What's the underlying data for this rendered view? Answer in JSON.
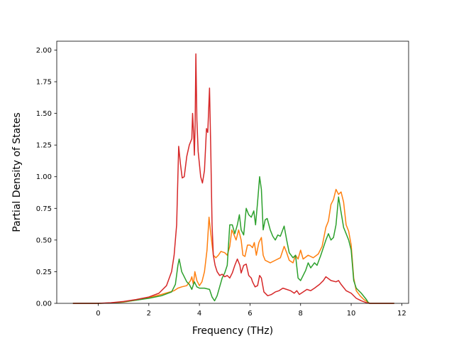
{
  "chart_data": {
    "type": "line",
    "title": "",
    "xlabel": "Frequency (THz)",
    "ylabel": "Partial Density of States",
    "xlim": [
      -1.64,
      12.27
    ],
    "ylim": [
      0,
      2.07
    ],
    "xticks": [
      0,
      2,
      4,
      6,
      8,
      10,
      12
    ],
    "yticks": [
      0.0,
      0.25,
      0.5,
      0.75,
      1.0,
      1.25,
      1.5,
      1.75,
      2.0
    ],
    "xtick_labels": [
      "0",
      "2",
      "4",
      "6",
      "8",
      "10",
      "12"
    ],
    "ytick_labels": [
      "0.00",
      "0.25",
      "0.50",
      "0.75",
      "1.00",
      "1.25",
      "1.50",
      "1.75",
      "2.00"
    ],
    "grid": false,
    "legend": "none",
    "series": [
      {
        "color": "#ff7f0e",
        "points": [
          [
            -1.0,
            0
          ],
          [
            0,
            0
          ],
          [
            0.5,
            0.003
          ],
          [
            1.0,
            0.01
          ],
          [
            1.5,
            0.025
          ],
          [
            2.0,
            0.045
          ],
          [
            2.5,
            0.07
          ],
          [
            3.0,
            0.1
          ],
          [
            3.15,
            0.12
          ],
          [
            3.3,
            0.13
          ],
          [
            3.5,
            0.14
          ],
          [
            3.65,
            0.18
          ],
          [
            3.7,
            0.21
          ],
          [
            3.76,
            0.15
          ],
          [
            3.82,
            0.25
          ],
          [
            3.9,
            0.18
          ],
          [
            4.0,
            0.14
          ],
          [
            4.1,
            0.17
          ],
          [
            4.2,
            0.25
          ],
          [
            4.3,
            0.42
          ],
          [
            4.38,
            0.68
          ],
          [
            4.45,
            0.55
          ],
          [
            4.55,
            0.38
          ],
          [
            4.65,
            0.36
          ],
          [
            4.75,
            0.38
          ],
          [
            4.85,
            0.41
          ],
          [
            5.0,
            0.4
          ],
          [
            5.1,
            0.38
          ],
          [
            5.2,
            0.45
          ],
          [
            5.28,
            0.58
          ],
          [
            5.35,
            0.55
          ],
          [
            5.45,
            0.5
          ],
          [
            5.55,
            0.58
          ],
          [
            5.65,
            0.5
          ],
          [
            5.72,
            0.38
          ],
          [
            5.8,
            0.37
          ],
          [
            5.9,
            0.46
          ],
          [
            6.0,
            0.46
          ],
          [
            6.1,
            0.44
          ],
          [
            6.17,
            0.48
          ],
          [
            6.25,
            0.38
          ],
          [
            6.35,
            0.48
          ],
          [
            6.45,
            0.52
          ],
          [
            6.52,
            0.38
          ],
          [
            6.6,
            0.34
          ],
          [
            6.8,
            0.32
          ],
          [
            7.0,
            0.34
          ],
          [
            7.2,
            0.36
          ],
          [
            7.35,
            0.45
          ],
          [
            7.45,
            0.4
          ],
          [
            7.55,
            0.34
          ],
          [
            7.7,
            0.32
          ],
          [
            7.8,
            0.38
          ],
          [
            7.9,
            0.35
          ],
          [
            8.0,
            0.42
          ],
          [
            8.1,
            0.35
          ],
          [
            8.3,
            0.38
          ],
          [
            8.5,
            0.36
          ],
          [
            8.7,
            0.39
          ],
          [
            8.85,
            0.45
          ],
          [
            9.0,
            0.6
          ],
          [
            9.1,
            0.65
          ],
          [
            9.2,
            0.78
          ],
          [
            9.3,
            0.82
          ],
          [
            9.4,
            0.9
          ],
          [
            9.5,
            0.86
          ],
          [
            9.6,
            0.88
          ],
          [
            9.7,
            0.8
          ],
          [
            9.8,
            0.62
          ],
          [
            9.9,
            0.57
          ],
          [
            10.0,
            0.46
          ],
          [
            10.1,
            0.2
          ],
          [
            10.2,
            0.1
          ],
          [
            10.35,
            0.06
          ],
          [
            10.5,
            0.03
          ],
          [
            10.65,
            0.01
          ],
          [
            10.75,
            0
          ],
          [
            11.7,
            0
          ]
        ]
      },
      {
        "color": "#2ca02c",
        "points": [
          [
            -1.0,
            0
          ],
          [
            0,
            0
          ],
          [
            0.5,
            0.003
          ],
          [
            1.0,
            0.012
          ],
          [
            1.5,
            0.025
          ],
          [
            2.0,
            0.04
          ],
          [
            2.5,
            0.06
          ],
          [
            2.9,
            0.09
          ],
          [
            3.05,
            0.15
          ],
          [
            3.15,
            0.3
          ],
          [
            3.2,
            0.35
          ],
          [
            3.3,
            0.25
          ],
          [
            3.4,
            0.21
          ],
          [
            3.5,
            0.17
          ],
          [
            3.6,
            0.15
          ],
          [
            3.7,
            0.11
          ],
          [
            3.8,
            0.17
          ],
          [
            3.9,
            0.13
          ],
          [
            4.0,
            0.12
          ],
          [
            4.2,
            0.12
          ],
          [
            4.4,
            0.11
          ],
          [
            4.5,
            0.05
          ],
          [
            4.6,
            0.02
          ],
          [
            4.7,
            0.06
          ],
          [
            4.8,
            0.13
          ],
          [
            4.9,
            0.2
          ],
          [
            5.0,
            0.24
          ],
          [
            5.1,
            0.3
          ],
          [
            5.2,
            0.62
          ],
          [
            5.3,
            0.62
          ],
          [
            5.4,
            0.55
          ],
          [
            5.5,
            0.62
          ],
          [
            5.58,
            0.7
          ],
          [
            5.65,
            0.58
          ],
          [
            5.75,
            0.54
          ],
          [
            5.85,
            0.75
          ],
          [
            5.95,
            0.7
          ],
          [
            6.05,
            0.68
          ],
          [
            6.15,
            0.73
          ],
          [
            6.22,
            0.62
          ],
          [
            6.3,
            0.8
          ],
          [
            6.38,
            1.0
          ],
          [
            6.45,
            0.9
          ],
          [
            6.52,
            0.58
          ],
          [
            6.6,
            0.66
          ],
          [
            6.68,
            0.67
          ],
          [
            6.8,
            0.58
          ],
          [
            6.9,
            0.53
          ],
          [
            7.0,
            0.5
          ],
          [
            7.1,
            0.54
          ],
          [
            7.2,
            0.53
          ],
          [
            7.35,
            0.61
          ],
          [
            7.45,
            0.5
          ],
          [
            7.55,
            0.4
          ],
          [
            7.7,
            0.36
          ],
          [
            7.8,
            0.38
          ],
          [
            7.9,
            0.2
          ],
          [
            8.0,
            0.18
          ],
          [
            8.1,
            0.22
          ],
          [
            8.2,
            0.26
          ],
          [
            8.3,
            0.32
          ],
          [
            8.4,
            0.28
          ],
          [
            8.55,
            0.32
          ],
          [
            8.65,
            0.3
          ],
          [
            8.8,
            0.38
          ],
          [
            9.0,
            0.5
          ],
          [
            9.1,
            0.55
          ],
          [
            9.2,
            0.5
          ],
          [
            9.3,
            0.52
          ],
          [
            9.4,
            0.62
          ],
          [
            9.5,
            0.84
          ],
          [
            9.6,
            0.72
          ],
          [
            9.7,
            0.6
          ],
          [
            9.8,
            0.55
          ],
          [
            9.9,
            0.5
          ],
          [
            10.0,
            0.42
          ],
          [
            10.1,
            0.18
          ],
          [
            10.2,
            0.12
          ],
          [
            10.4,
            0.08
          ],
          [
            10.6,
            0.03
          ],
          [
            10.7,
            0
          ],
          [
            11.7,
            0
          ]
        ]
      },
      {
        "color": "#d62728",
        "points": [
          [
            -1.0,
            0
          ],
          [
            0,
            0
          ],
          [
            0.5,
            0.005
          ],
          [
            1.0,
            0.015
          ],
          [
            1.5,
            0.03
          ],
          [
            2.0,
            0.05
          ],
          [
            2.4,
            0.08
          ],
          [
            2.7,
            0.14
          ],
          [
            2.9,
            0.25
          ],
          [
            3.0,
            0.38
          ],
          [
            3.1,
            0.62
          ],
          [
            3.18,
            1.24
          ],
          [
            3.25,
            1.1
          ],
          [
            3.32,
            0.99
          ],
          [
            3.4,
            1.0
          ],
          [
            3.5,
            1.16
          ],
          [
            3.6,
            1.25
          ],
          [
            3.7,
            1.3
          ],
          [
            3.73,
            1.5
          ],
          [
            3.78,
            1.3
          ],
          [
            3.8,
            1.17
          ],
          [
            3.83,
            1.4
          ],
          [
            3.86,
            1.97
          ],
          [
            3.9,
            1.45
          ],
          [
            3.95,
            1.2
          ],
          [
            4.05,
            1.0
          ],
          [
            4.12,
            0.95
          ],
          [
            4.2,
            1.05
          ],
          [
            4.28,
            1.38
          ],
          [
            4.33,
            1.35
          ],
          [
            4.4,
            1.7
          ],
          [
            4.45,
            1.2
          ],
          [
            4.5,
            0.62
          ],
          [
            4.55,
            0.38
          ],
          [
            4.62,
            0.3
          ],
          [
            4.7,
            0.25
          ],
          [
            4.8,
            0.22
          ],
          [
            4.9,
            0.23
          ],
          [
            5.0,
            0.21
          ],
          [
            5.1,
            0.22
          ],
          [
            5.2,
            0.2
          ],
          [
            5.3,
            0.24
          ],
          [
            5.4,
            0.3
          ],
          [
            5.5,
            0.35
          ],
          [
            5.6,
            0.3
          ],
          [
            5.65,
            0.24
          ],
          [
            5.75,
            0.3
          ],
          [
            5.85,
            0.31
          ],
          [
            5.95,
            0.22
          ],
          [
            6.05,
            0.2
          ],
          [
            6.1,
            0.17
          ],
          [
            6.2,
            0.13
          ],
          [
            6.3,
            0.14
          ],
          [
            6.38,
            0.22
          ],
          [
            6.45,
            0.2
          ],
          [
            6.55,
            0.09
          ],
          [
            6.7,
            0.06
          ],
          [
            6.85,
            0.07
          ],
          [
            7.0,
            0.09
          ],
          [
            7.15,
            0.1
          ],
          [
            7.3,
            0.12
          ],
          [
            7.45,
            0.11
          ],
          [
            7.6,
            0.1
          ],
          [
            7.75,
            0.08
          ],
          [
            7.85,
            0.1
          ],
          [
            7.95,
            0.07
          ],
          [
            8.1,
            0.09
          ],
          [
            8.25,
            0.11
          ],
          [
            8.4,
            0.1
          ],
          [
            8.55,
            0.12
          ],
          [
            8.75,
            0.15
          ],
          [
            8.9,
            0.18
          ],
          [
            9.0,
            0.21
          ],
          [
            9.2,
            0.18
          ],
          [
            9.4,
            0.17
          ],
          [
            9.5,
            0.18
          ],
          [
            9.6,
            0.15
          ],
          [
            9.8,
            0.1
          ],
          [
            10.0,
            0.08
          ],
          [
            10.2,
            0.04
          ],
          [
            10.4,
            0.02
          ],
          [
            10.6,
            0.005
          ],
          [
            10.75,
            0
          ],
          [
            11.7,
            0
          ]
        ]
      }
    ]
  }
}
